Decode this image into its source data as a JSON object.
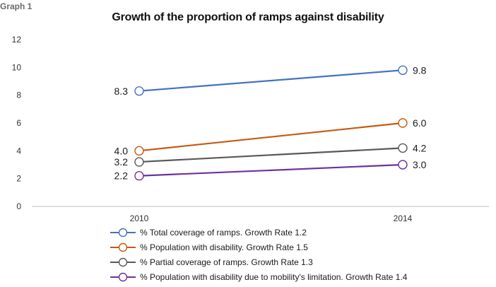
{
  "graph_label": "Graph 1",
  "chart_data": {
    "type": "line",
    "title": "Growth of the proportion of ramps against disability",
    "xlabel": "",
    "ylabel": "",
    "categories": [
      "2010",
      "2014"
    ],
    "ylim": [
      0,
      12
    ],
    "yticks": [
      "0",
      "2",
      "4",
      "6",
      "8",
      "10",
      "12"
    ],
    "grid": false,
    "legend_position": "bottom",
    "series": [
      {
        "name": "% Total coverage of ramps. Growth Rate 1.2",
        "values": [
          8.3,
          9.8
        ],
        "labels": [
          "8.3",
          "9.8"
        ],
        "color": "#4472c4"
      },
      {
        "name": "% Population with disability. Growth Rate 1.5",
        "values": [
          4.0,
          6.0
        ],
        "labels": [
          "4.0",
          "6.0"
        ],
        "color": "#c55a11"
      },
      {
        "name": "% Partial coverage of ramps. Growth Rate 1.3",
        "values": [
          3.2,
          4.2
        ],
        "labels": [
          "3.2",
          "4.2"
        ],
        "color": "#595959"
      },
      {
        "name": "% Population with disability due to mobility's limitation. Growth Rate 1.4",
        "values": [
          2.2,
          3.0
        ],
        "labels": [
          "2.2",
          "3.0"
        ],
        "color": "#7030a0"
      }
    ]
  }
}
